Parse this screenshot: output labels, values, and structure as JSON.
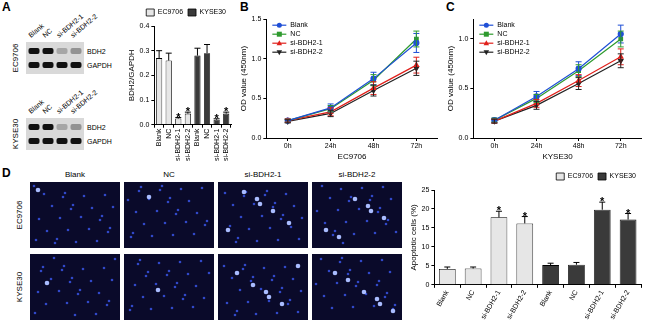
{
  "panel_letters": [
    "A",
    "B",
    "C",
    "D"
  ],
  "blot": {
    "lanes": [
      "Blank",
      "NC",
      "si-BDH2-1",
      "si-BDH2-2"
    ],
    "cell_lines": [
      "EC9706",
      "KYSE30"
    ],
    "bands": [
      "BDH2",
      "GAPDH"
    ]
  },
  "images": {
    "columns": [
      "Blank",
      "NC",
      "si-BDH2-1",
      "si-BDH2-2"
    ],
    "rows": [
      "EC9706",
      "KYSE30"
    ]
  },
  "chart_data": [
    {
      "type": "bar",
      "y_label": "BDH2/GAPDH",
      "categories": [
        "Blank",
        "NC",
        "si-BDH2-1",
        "si-BDH2-2",
        "Blank",
        "NC",
        "si-BDH2-1",
        "si-BDH2-2"
      ],
      "series": [
        {
          "name": "EC9706",
          "color": "#e6e6e6",
          "values": [
            0.27,
            0.26,
            0.025,
            0.045,
            null,
            null,
            null,
            null
          ],
          "error": [
            0.03,
            0.03,
            0.004,
            0.006,
            null,
            null,
            null,
            null
          ]
        },
        {
          "name": "KYSE30",
          "color": "#3a3a3a",
          "values": [
            null,
            null,
            null,
            null,
            0.28,
            0.29,
            0.02,
            0.045
          ],
          "error": [
            null,
            null,
            null,
            null,
            0.03,
            0.035,
            0.004,
            0.006
          ]
        }
      ],
      "ylim": [
        0,
        0.4
      ],
      "yticks": [
        {
          "value": 0,
          "label": "0.0"
        },
        0.1,
        0.2,
        0.3,
        0.4
      ],
      "grid": false,
      "legend": "top-right",
      "annotations": [
        {
          "series": "EC9706",
          "index": 2,
          "text": "*"
        },
        {
          "series": "EC9706",
          "index": 3,
          "text": "*"
        },
        {
          "series": "KYSE30",
          "index": 6,
          "text": "*"
        },
        {
          "series": "KYSE30",
          "index": 7,
          "text": "*"
        }
      ]
    },
    {
      "type": "line",
      "x_label": "EC9706",
      "y_label": "OD value (450nm)",
      "categories": [
        "0h",
        "24h",
        "48h",
        "72h"
      ],
      "series": [
        {
          "name": "Blank",
          "color": "#1f4fd6",
          "marker": "circle",
          "values": [
            0.22,
            0.38,
            0.75,
            1.2
          ],
          "error": [
            0.02,
            0.05,
            0.08,
            0.12
          ]
        },
        {
          "name": "NC",
          "color": "#2e9a2e",
          "marker": "square",
          "values": [
            0.22,
            0.37,
            0.73,
            1.25
          ],
          "error": [
            0.02,
            0.04,
            0.07,
            0.1
          ]
        },
        {
          "name": "si-BDH2-1",
          "color": "#e0201b",
          "marker": "triangle",
          "values": [
            0.22,
            0.33,
            0.63,
            0.92
          ],
          "error": [
            0.02,
            0.05,
            0.08,
            0.1
          ]
        },
        {
          "name": "si-BDH2-2",
          "color": "#222222",
          "marker": "triangle-down",
          "values": [
            0.21,
            0.31,
            0.6,
            0.88
          ],
          "error": [
            0.02,
            0.04,
            0.07,
            0.09
          ]
        }
      ],
      "ylim": [
        0,
        1.5
      ],
      "yticks": [
        {
          "value": 0,
          "label": "0.0"
        },
        0.5,
        {
          "value": 1,
          "label": "1.0"
        },
        1.5
      ],
      "grid": false,
      "legend": "top-left"
    },
    {
      "type": "line",
      "x_label": "KYSE30",
      "y_label": "OD value (450nm)",
      "categories": [
        "0h",
        "24h",
        "48h",
        "72h"
      ],
      "series": [
        {
          "name": "Blank",
          "color": "#1f4fd6",
          "marker": "circle",
          "values": [
            0.18,
            0.42,
            0.7,
            1.05
          ],
          "error": [
            0.02,
            0.05,
            0.07,
            0.09
          ]
        },
        {
          "name": "NC",
          "color": "#2e9a2e",
          "marker": "square",
          "values": [
            0.18,
            0.4,
            0.68,
            1.0
          ],
          "error": [
            0.02,
            0.04,
            0.06,
            0.08
          ]
        },
        {
          "name": "si-BDH2-1",
          "color": "#e0201b",
          "marker": "triangle",
          "values": [
            0.17,
            0.35,
            0.58,
            0.82
          ],
          "error": [
            0.02,
            0.04,
            0.06,
            0.08
          ]
        },
        {
          "name": "si-BDH2-2",
          "color": "#222222",
          "marker": "triangle-down",
          "values": [
            0.17,
            0.33,
            0.55,
            0.78
          ],
          "error": [
            0.02,
            0.04,
            0.06,
            0.07
          ]
        }
      ],
      "ylim": [
        0,
        1.2
      ],
      "yticks": [
        {
          "value": 0,
          "label": "0.0"
        },
        0.5,
        {
          "value": 1,
          "label": "1.0"
        }
      ],
      "grid": false,
      "legend": "top-left"
    },
    {
      "type": "bar",
      "y_label": "Apoptotic cells (%)",
      "categories": [
        "Blank",
        "NC",
        "si-BDH2-1",
        "si-BDH2-2",
        "Blank",
        "NC",
        "si-BDH2-1",
        "si-BDH2-2"
      ],
      "series": [
        {
          "name": "EC9706",
          "color": "#e6e6e6",
          "values": [
            4.2,
            4.3,
            17.8,
            16.2,
            null,
            null,
            null,
            null
          ],
          "error": [
            0.5,
            0.4,
            1.6,
            1.8,
            null,
            null,
            null,
            null
          ]
        },
        {
          "name": "KYSE30",
          "color": "#3a3a3a",
          "values": [
            null,
            null,
            null,
            null,
            5.2,
            5.3,
            19.8,
            17.2
          ],
          "error": [
            null,
            null,
            null,
            null,
            0.5,
            0.6,
            2.0,
            1.6
          ]
        }
      ],
      "ylim": [
        0,
        25
      ],
      "yticks": [
        0,
        5,
        10,
        15,
        20,
        25
      ],
      "grid": false,
      "legend": "top-right",
      "annotations": [
        {
          "series": "EC9706",
          "index": 2,
          "text": "*"
        },
        {
          "series": "EC9706",
          "index": 3,
          "text": "*"
        },
        {
          "series": "KYSE30",
          "index": 6,
          "text": "*"
        },
        {
          "series": "KYSE30",
          "index": 7,
          "text": "*"
        }
      ]
    }
  ]
}
